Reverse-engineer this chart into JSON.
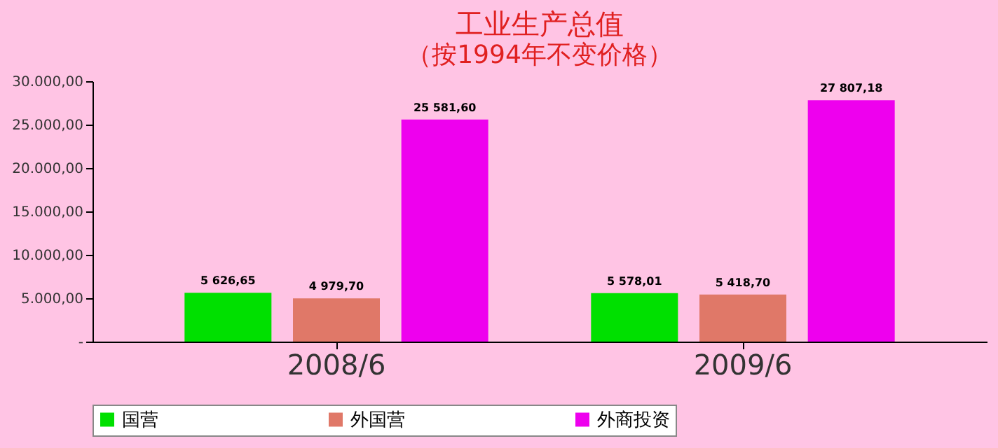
{
  "chart_data": {
    "type": "bar",
    "title": "工业生产总值",
    "subtitle": "（按1994年不变价格）",
    "categories": [
      "2008/6",
      "2009/6"
    ],
    "series": [
      {
        "name": "国营",
        "color": "#00e000",
        "values": [
          5626.65,
          5578.01
        ],
        "value_labels": [
          "5 626,65",
          "5 578,01"
        ]
      },
      {
        "name": "外国营",
        "color": "#e07868",
        "values": [
          4979.7,
          5418.7
        ],
        "value_labels": [
          "4 979,70",
          "5 418,70"
        ]
      },
      {
        "name": "外商投资",
        "color": "#ee00ee",
        "values": [
          25581.6,
          27807.18
        ],
        "value_labels": [
          "25 581,60",
          "27 807,18"
        ]
      }
    ],
    "ylim": [
      0,
      30000
    ],
    "yticks": [
      {
        "value": 0,
        "label": "-"
      },
      {
        "value": 5000,
        "label": "5.000,00"
      },
      {
        "value": 10000,
        "label": "10.000,00"
      },
      {
        "value": 15000,
        "label": "15.000,00"
      },
      {
        "value": 20000,
        "label": "20.000,00"
      },
      {
        "value": 25000,
        "label": "25.000,00"
      },
      {
        "value": 30000,
        "label": "30.000,00"
      }
    ],
    "grid": false,
    "legend": "bottom"
  }
}
